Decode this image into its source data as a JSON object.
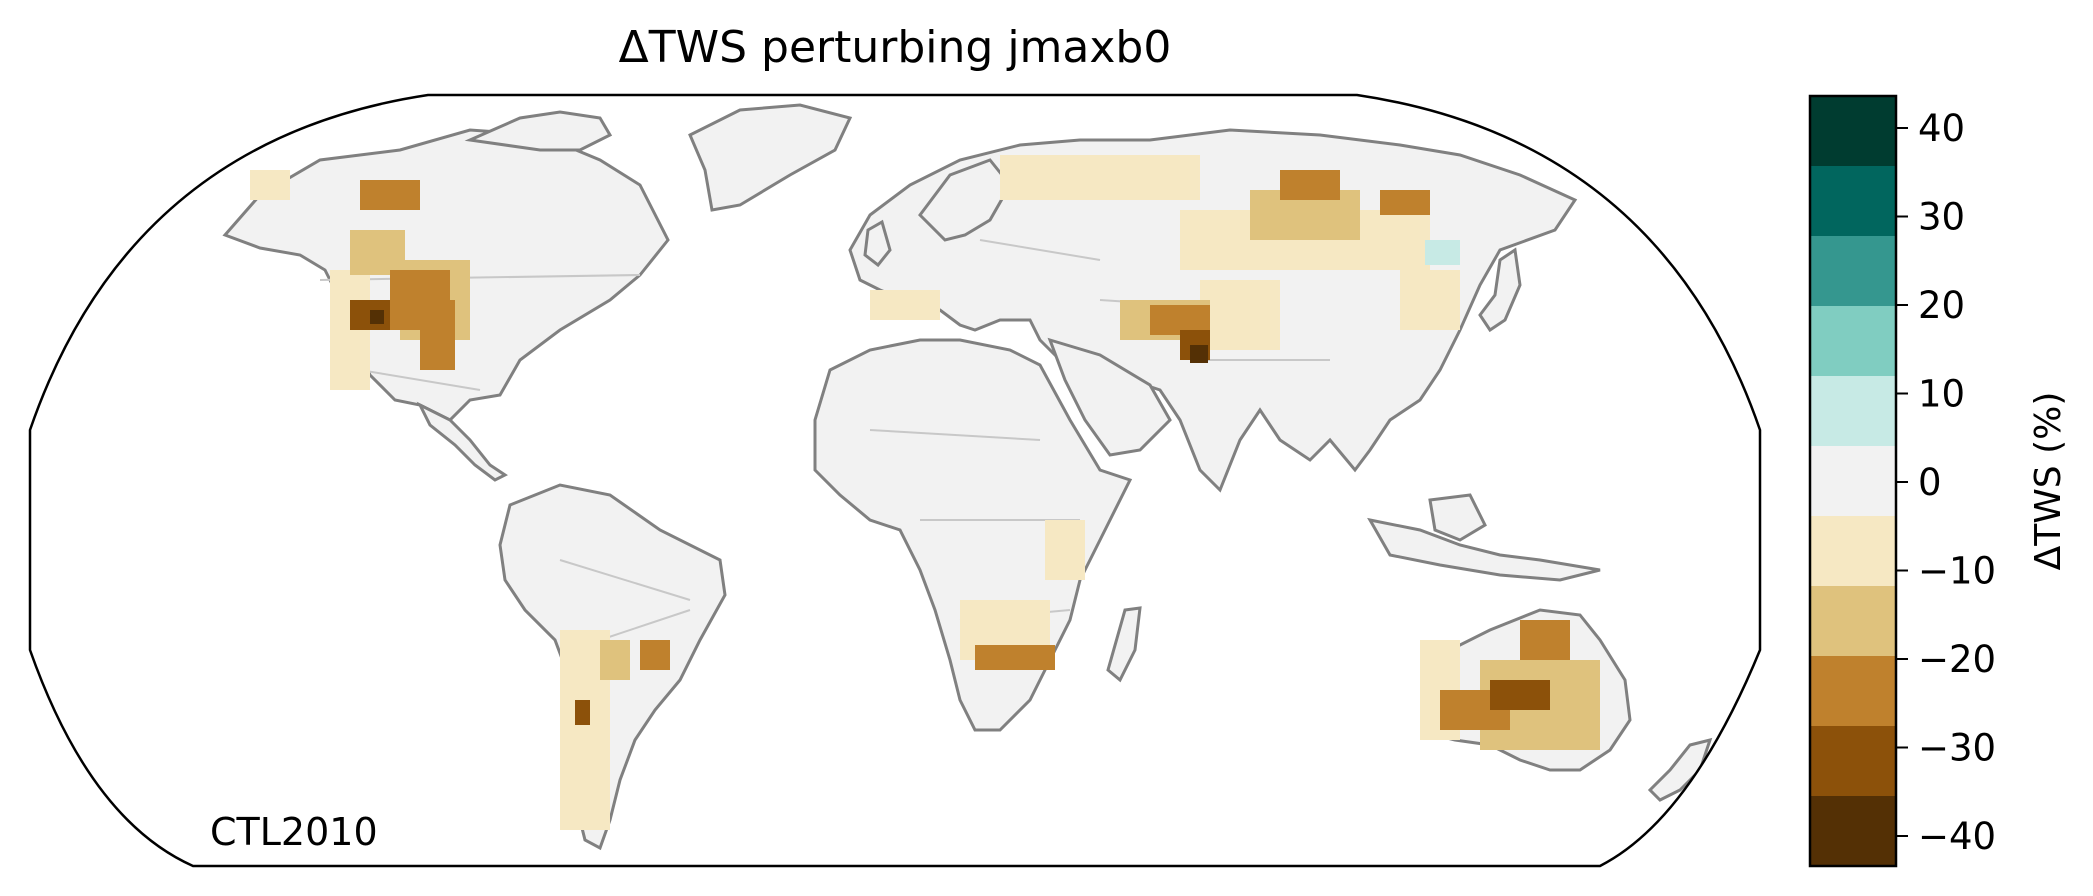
{
  "title": "ΔTWS perturbing jmaxb0",
  "scenario_label": "CTL2010",
  "colorbar": {
    "label": "ΔTWS (%)",
    "ticks": [
      {
        "value": 40,
        "text": "40"
      },
      {
        "value": 30,
        "text": "30"
      },
      {
        "value": 20,
        "text": "20"
      },
      {
        "value": 10,
        "text": "10"
      },
      {
        "value": 0,
        "text": "0"
      },
      {
        "value": -10,
        "text": "−10"
      },
      {
        "value": -20,
        "text": "−20"
      },
      {
        "value": -30,
        "text": "−30"
      },
      {
        "value": -40,
        "text": "−40"
      }
    ],
    "bins": [
      {
        "from": 35,
        "to": 45,
        "color": "#003c30"
      },
      {
        "from": 25,
        "to": 35,
        "color": "#01665e"
      },
      {
        "from": 15,
        "to": 25,
        "color": "#35978f"
      },
      {
        "from": 5,
        "to": 15,
        "color": "#80cdc1"
      },
      {
        "from": 5,
        "to": 5,
        "color": "#c7eae5"
      },
      {
        "from": -5,
        "to": 5,
        "color": "#f2f2f2"
      },
      {
        "from": -15,
        "to": -5,
        "color": "#f6e8c3"
      },
      {
        "from": -25,
        "to": -15,
        "color": "#dfc27d"
      },
      {
        "from": -35,
        "to": -25,
        "color": "#bf812d"
      },
      {
        "from": -45,
        "to": -35,
        "color": "#8c510a"
      }
    ],
    "extra_bin_color": "#543005",
    "range": [
      -45,
      45
    ]
  },
  "colors": {
    "land": "#f2f2f2",
    "coast": "#808080",
    "border": "#c8c8c8",
    "frame": "#000000"
  }
}
